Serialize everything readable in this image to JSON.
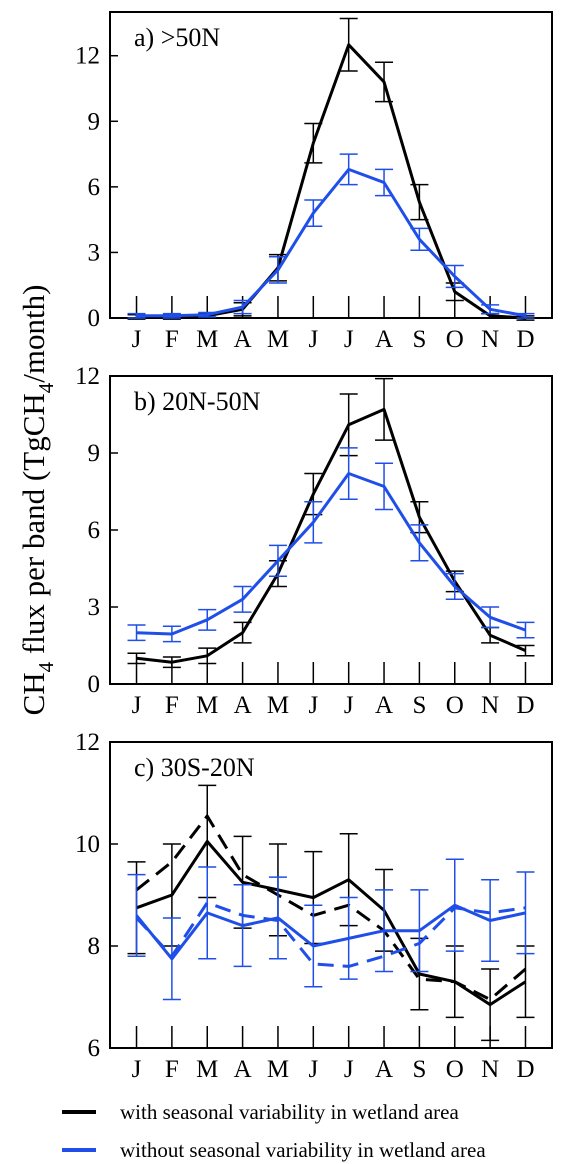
{
  "colors": {
    "black": "#000000",
    "blue": "#1f4fe8"
  },
  "ylabel_parts": {
    "a": "CH",
    "b": "4",
    "c": " flux per band (TgCH",
    "d": "4",
    "e": "/month)"
  },
  "legend": [
    {
      "label": "with seasonal variability in wetland area",
      "color": "#000000"
    },
    {
      "label": "without seasonal variability in wetland area",
      "color": "#1f4fe8"
    }
  ],
  "chart_data": [
    {
      "type": "line",
      "title": "a) >50N",
      "categories": [
        "J",
        "F",
        "M",
        "A",
        "M",
        "J",
        "J",
        "A",
        "S",
        "O",
        "N",
        "D"
      ],
      "ylim": [
        0,
        14
      ],
      "yticks": [
        0,
        3,
        6,
        9,
        12
      ],
      "series": [
        {
          "name": "with seasonal variability in wetland area",
          "color": "#000000",
          "dashed": false,
          "values": [
            0.05,
            0.05,
            0.1,
            0.4,
            2.3,
            8.0,
            12.5,
            10.8,
            5.3,
            1.2,
            0.1,
            0.0
          ],
          "errors": [
            0.1,
            0.1,
            0.1,
            0.3,
            0.6,
            0.9,
            1.2,
            0.9,
            0.8,
            0.4,
            0.1,
            0.1
          ]
        },
        {
          "name": "without seasonal variability in wetland area",
          "color": "#1f4fe8",
          "dashed": false,
          "values": [
            0.1,
            0.1,
            0.15,
            0.5,
            2.2,
            4.8,
            6.8,
            6.2,
            3.6,
            1.9,
            0.4,
            0.1
          ],
          "errors": [
            0.1,
            0.1,
            0.1,
            0.3,
            0.6,
            0.6,
            0.7,
            0.6,
            0.5,
            0.5,
            0.2,
            0.1
          ]
        }
      ]
    },
    {
      "type": "line",
      "title": "b) 20N-50N",
      "categories": [
        "J",
        "F",
        "M",
        "A",
        "M",
        "J",
        "J",
        "A",
        "S",
        "O",
        "N",
        "D"
      ],
      "ylim": [
        0,
        12
      ],
      "yticks": [
        0,
        3,
        6,
        9,
        12
      ],
      "series": [
        {
          "name": "with seasonal variability in wetland area",
          "color": "#000000",
          "dashed": false,
          "values": [
            1.0,
            0.85,
            1.1,
            2.0,
            4.3,
            7.4,
            10.1,
            10.7,
            6.5,
            4.0,
            1.9,
            1.3
          ],
          "errors": [
            0.2,
            0.2,
            0.3,
            0.4,
            0.5,
            0.8,
            1.2,
            1.2,
            0.6,
            0.4,
            0.3,
            0.2
          ]
        },
        {
          "name": "without seasonal variability in wetland area",
          "color": "#1f4fe8",
          "dashed": false,
          "values": [
            2.0,
            1.95,
            2.5,
            3.3,
            4.8,
            6.3,
            8.2,
            7.7,
            5.5,
            3.8,
            2.6,
            2.1
          ],
          "errors": [
            0.3,
            0.3,
            0.4,
            0.5,
            0.6,
            0.8,
            1.0,
            0.9,
            0.7,
            0.5,
            0.4,
            0.3
          ]
        }
      ]
    },
    {
      "type": "line",
      "title": "c) 30S-20N",
      "categories": [
        "J",
        "F",
        "M",
        "A",
        "M",
        "J",
        "J",
        "A",
        "S",
        "O",
        "N",
        "D"
      ],
      "ylim": [
        6,
        12
      ],
      "yticks": [
        6,
        8,
        10,
        12
      ],
      "series": [
        {
          "name": "with seasonal variability in wetland area",
          "color": "#000000",
          "dashed": false,
          "values": [
            8.75,
            9.0,
            10.05,
            9.25,
            9.1,
            8.95,
            9.3,
            8.7,
            7.45,
            7.3,
            6.85,
            7.3
          ],
          "errors": [
            0.9,
            1.0,
            1.1,
            0.9,
            0.9,
            0.9,
            0.9,
            0.8,
            0.7,
            0.7,
            0.7,
            0.7
          ]
        },
        {
          "name": "",
          "color": "#000000",
          "dashed": true,
          "values": [
            9.1,
            9.65,
            10.55,
            9.4,
            9.0,
            8.6,
            8.8,
            8.3,
            7.35,
            7.3,
            6.95,
            7.55
          ],
          "errors": []
        },
        {
          "name": "without seasonal variability in wetland area",
          "color": "#1f4fe8",
          "dashed": false,
          "values": [
            8.6,
            7.75,
            8.65,
            8.4,
            8.55,
            8.0,
            8.15,
            8.3,
            8.3,
            8.8,
            8.5,
            8.65
          ],
          "errors": [
            0.8,
            0.8,
            0.9,
            0.8,
            0.8,
            0.8,
            0.8,
            0.8,
            0.8,
            0.9,
            0.8,
            0.8
          ]
        },
        {
          "name": "",
          "color": "#1f4fe8",
          "dashed": true,
          "values": [
            8.55,
            7.8,
            8.85,
            8.6,
            8.5,
            7.65,
            7.6,
            7.8,
            8.05,
            8.75,
            8.65,
            8.75
          ],
          "errors": []
        }
      ]
    }
  ]
}
